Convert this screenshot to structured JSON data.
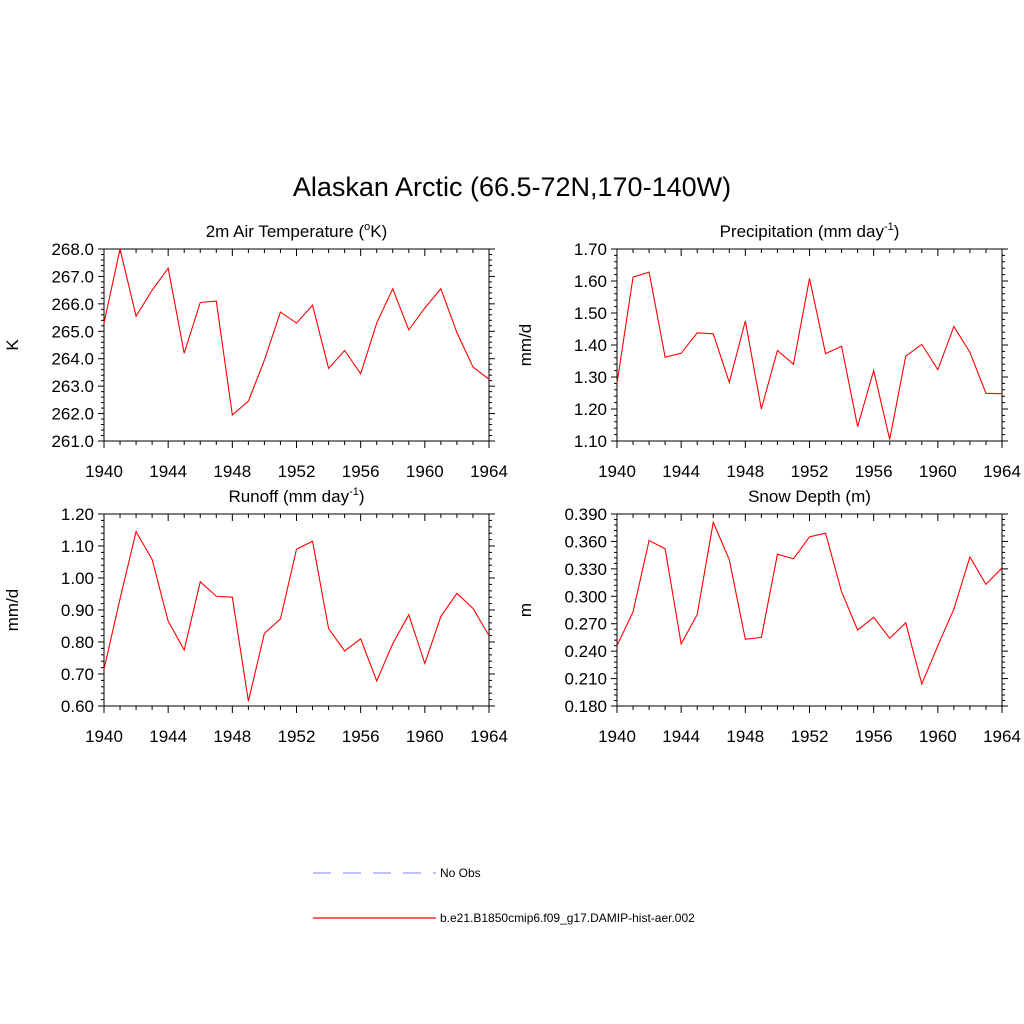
{
  "figure": {
    "title": "Alaskan Arctic (66.5-72N,170-140W)"
  },
  "legend": {
    "entries": [
      {
        "label": "No Obs",
        "color": "#9999ff",
        "style": "dashed"
      },
      {
        "label": "b.e21.B1850cmip6.f09_g17.DAMIP-hist-aer.002",
        "color": "#ff0000",
        "style": "solid"
      }
    ]
  },
  "chart_data": [
    {
      "type": "line",
      "title": "2m Air Temperature (°K)",
      "title_parts": [
        "2m Air Temperature (",
        "o",
        "K)"
      ],
      "ylabel": "K",
      "xlim": [
        1940,
        1964
      ],
      "ylim": [
        261.0,
        268.0
      ],
      "xticks": [
        1940,
        1944,
        1948,
        1952,
        1956,
        1960,
        1964
      ],
      "yticks": [
        "261.0",
        "262.0",
        "263.0",
        "264.0",
        "265.0",
        "266.0",
        "267.0",
        "268.0"
      ],
      "x": [
        1940,
        1941,
        1942,
        1943,
        1944,
        1945,
        1946,
        1947,
        1948,
        1949,
        1950,
        1951,
        1952,
        1953,
        1954,
        1955,
        1956,
        1957,
        1958,
        1959,
        1960,
        1961,
        1962,
        1963,
        1964
      ],
      "series": [
        {
          "name": "b.e21.B1850cmip6.f09_g17.DAMIP-hist-aer.002",
          "color": "#ff0000",
          "values": [
            265.3,
            268.0,
            265.55,
            266.5,
            267.3,
            264.2,
            266.05,
            266.1,
            261.95,
            262.45,
            263.95,
            265.7,
            265.3,
            265.95,
            263.65,
            264.3,
            263.45,
            265.3,
            266.55,
            265.05,
            265.85,
            266.55,
            264.95,
            263.7,
            263.25
          ]
        }
      ]
    },
    {
      "type": "line",
      "title": "Precipitation (mm day-1)",
      "title_parts": [
        "Precipitation (mm day",
        "-1",
        ")"
      ],
      "ylabel": "mm/d",
      "xlim": [
        1940,
        1964
      ],
      "ylim": [
        1.1,
        1.7
      ],
      "xticks": [
        1940,
        1944,
        1948,
        1952,
        1956,
        1960,
        1964
      ],
      "yticks": [
        "1.10",
        "1.20",
        "1.30",
        "1.40",
        "1.50",
        "1.60",
        "1.70"
      ],
      "x": [
        1940,
        1941,
        1942,
        1943,
        1944,
        1945,
        1946,
        1947,
        1948,
        1949,
        1950,
        1951,
        1952,
        1953,
        1954,
        1955,
        1956,
        1957,
        1958,
        1959,
        1960,
        1961,
        1962,
        1963,
        1964
      ],
      "series": [
        {
          "name": "b.e21.B1850cmip6.f09_g17.DAMIP-hist-aer.002",
          "color": "#ff0000",
          "values": [
            1.28,
            1.612,
            1.628,
            1.362,
            1.374,
            1.438,
            1.435,
            1.283,
            1.475,
            1.2,
            1.383,
            1.34,
            1.608,
            1.373,
            1.396,
            1.145,
            1.32,
            1.105,
            1.365,
            1.402,
            1.323,
            1.458,
            1.377,
            1.249,
            1.248
          ]
        }
      ]
    },
    {
      "type": "line",
      "title": "Runoff (mm day-1)",
      "title_parts": [
        "Runoff (mm day",
        "-1",
        ")"
      ],
      "ylabel": "mm/d",
      "xlim": [
        1940,
        1964
      ],
      "ylim": [
        0.6,
        1.2
      ],
      "xticks": [
        1940,
        1944,
        1948,
        1952,
        1956,
        1960,
        1964
      ],
      "yticks": [
        "0.60",
        "0.70",
        "0.80",
        "0.90",
        "1.00",
        "1.10",
        "1.20"
      ],
      "x": [
        1940,
        1941,
        1942,
        1943,
        1944,
        1945,
        1946,
        1947,
        1948,
        1949,
        1950,
        1951,
        1952,
        1953,
        1954,
        1955,
        1956,
        1957,
        1958,
        1959,
        1960,
        1961,
        1962,
        1963,
        1964
      ],
      "series": [
        {
          "name": "b.e21.B1850cmip6.f09_g17.DAMIP-hist-aer.002",
          "color": "#ff0000",
          "values": [
            0.715,
            0.935,
            1.145,
            1.058,
            0.865,
            0.775,
            0.988,
            0.943,
            0.94,
            0.615,
            0.827,
            0.872,
            1.09,
            1.115,
            0.842,
            0.772,
            0.81,
            0.678,
            0.795,
            0.885,
            0.733,
            0.88,
            0.952,
            0.905,
            0.82
          ]
        }
      ]
    },
    {
      "type": "line",
      "title": "Snow Depth (m)",
      "title_parts": [
        "Snow Depth (m)",
        "",
        ""
      ],
      "ylabel": "m",
      "xlim": [
        1940,
        1964
      ],
      "ylim": [
        0.18,
        0.39
      ],
      "xticks": [
        1940,
        1944,
        1948,
        1952,
        1956,
        1960,
        1964
      ],
      "yticks": [
        "0.180",
        "0.210",
        "0.240",
        "0.270",
        "0.300",
        "0.330",
        "0.360",
        "0.390"
      ],
      "x": [
        1940,
        1941,
        1942,
        1943,
        1944,
        1945,
        1946,
        1947,
        1948,
        1949,
        1950,
        1951,
        1952,
        1953,
        1954,
        1955,
        1956,
        1957,
        1958,
        1959,
        1960,
        1961,
        1962,
        1963,
        1964
      ],
      "series": [
        {
          "name": "b.e21.B1850cmip6.f09_g17.DAMIP-hist-aer.002",
          "color": "#ff0000",
          "values": [
            0.246,
            0.283,
            0.361,
            0.352,
            0.248,
            0.28,
            0.381,
            0.34,
            0.253,
            0.255,
            0.346,
            0.341,
            0.365,
            0.369,
            0.305,
            0.263,
            0.277,
            0.254,
            0.271,
            0.204,
            0.246,
            0.286,
            0.343,
            0.313,
            0.331
          ]
        }
      ]
    }
  ]
}
